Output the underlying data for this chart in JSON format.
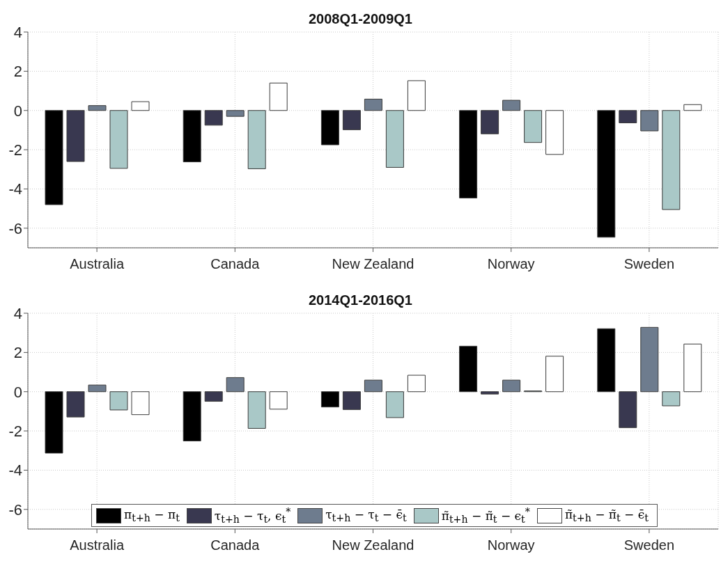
{
  "chart_data": [
    {
      "type": "bar",
      "title": "2008Q1-2009Q1",
      "categories": [
        "Australia",
        "Canada",
        "New Zealand",
        "Norway",
        "Sweden"
      ],
      "series": [
        {
          "color": "#000000",
          "values": [
            -4.8,
            -2.62,
            -1.75,
            -4.46,
            -6.46
          ]
        },
        {
          "color": "#393850",
          "values": [
            -2.6,
            -0.75,
            -0.98,
            -1.19,
            -0.63
          ]
        },
        {
          "color": "#6e7c8e",
          "values": [
            0.25,
            -0.3,
            0.58,
            0.52,
            -1.04
          ]
        },
        {
          "color": "#a9c8c7",
          "values": [
            -2.95,
            -2.97,
            -2.9,
            -1.63,
            -5.05
          ]
        },
        {
          "color": "#ffffff",
          "values": [
            0.45,
            1.4,
            1.52,
            -2.24,
            0.3
          ]
        }
      ],
      "ylim": [
        -7,
        4
      ],
      "yticks": [
        -6,
        -4,
        -2,
        0,
        2,
        4
      ],
      "grid": true,
      "legend": false
    },
    {
      "type": "bar",
      "title": "2014Q1-2016Q1",
      "categories": [
        "Australia",
        "Canada",
        "New Zealand",
        "Norway",
        "Sweden"
      ],
      "series": [
        {
          "name": "π$_{t+h}$ − π$_{t}$",
          "color": "#000000",
          "values": [
            -3.13,
            -2.51,
            -0.78,
            2.32,
            3.21
          ]
        },
        {
          "name": "τ$_{t+h}$ − τ$_{t}$, ϵ$_{t}$$^{*}$",
          "color": "#393850",
          "values": [
            -1.29,
            -0.49,
            -0.91,
            -0.12,
            -1.83
          ]
        },
        {
          "name": "τ$_{t+h}$ − τ$_{t}$ − ϵ̄$_{t}$",
          "color": "#6e7c8e",
          "values": [
            0.34,
            0.72,
            0.59,
            0.59,
            3.28
          ]
        },
        {
          "name": "π̃$_{t+h}$ − π̃$_{t}$ − ϵ$_{t}$$^{*}$",
          "color": "#a9c8c7",
          "values": [
            -0.93,
            -1.87,
            -1.32,
            0.04,
            -0.72
          ]
        },
        {
          "name": "π̃$_{t+h}$ − π̃$_{t}$ − ϵ̄$_{t}$",
          "color": "#ffffff",
          "values": [
            -1.17,
            -0.89,
            0.84,
            1.81,
            2.43
          ]
        }
      ],
      "ylim": [
        -7,
        4
      ],
      "yticks": [
        -6,
        -4,
        -2,
        0,
        2,
        4
      ],
      "grid": true,
      "legend": "bottom"
    }
  ]
}
